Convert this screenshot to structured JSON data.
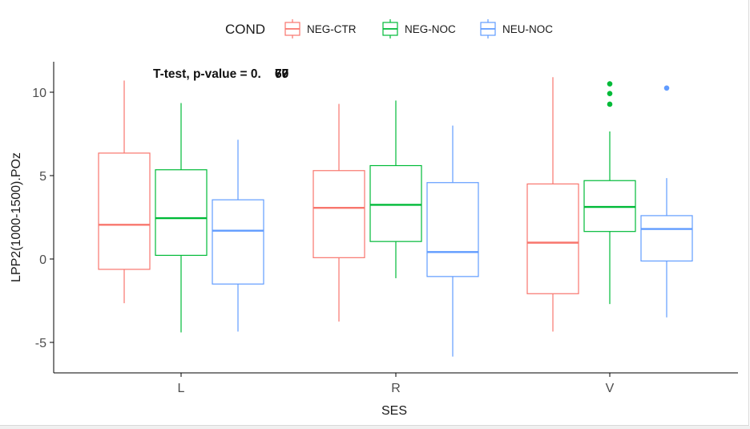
{
  "chart_data": {
    "type": "boxplot",
    "xlabel": "SES",
    "ylabel": "LPP2(1000-1500).POz",
    "categories": [
      "L",
      "R",
      "V"
    ],
    "ylim": [
      -6.8,
      11.8
    ],
    "yticks": [
      -5,
      0,
      5,
      10
    ],
    "ytick_labels": [
      "-5",
      "0",
      "5",
      "10"
    ],
    "legend": {
      "title": "COND",
      "position": "top",
      "entries": [
        "NEG-CTR",
        "NEG-NOC",
        "NEU-NOC"
      ]
    },
    "annotation": {
      "text": "T-test, p-value = 0.",
      "overlay_digits": [
        "69",
        "77",
        "60"
      ]
    },
    "series": [
      {
        "name": "NEG-CTR",
        "color": "#F8766D",
        "boxes": [
          {
            "category": "L",
            "lower_whisker": -2.65,
            "q1": -0.62,
            "median": 2.05,
            "q3": 6.35,
            "upper_whisker": 10.7,
            "outliers": []
          },
          {
            "category": "R",
            "lower_whisker": -3.75,
            "q1": 0.08,
            "median": 3.07,
            "q3": 5.3,
            "upper_whisker": 9.3,
            "outliers": []
          },
          {
            "category": "V",
            "lower_whisker": -4.35,
            "q1": -2.08,
            "median": 0.98,
            "q3": 4.5,
            "upper_whisker": 10.9,
            "outliers": []
          }
        ]
      },
      {
        "name": "NEG-NOC",
        "color": "#00BA38",
        "boxes": [
          {
            "category": "L",
            "lower_whisker": -4.4,
            "q1": 0.22,
            "median": 2.45,
            "q3": 5.35,
            "upper_whisker": 9.35,
            "outliers": []
          },
          {
            "category": "R",
            "lower_whisker": -1.15,
            "q1": 1.05,
            "median": 3.25,
            "q3": 5.6,
            "upper_whisker": 9.5,
            "outliers": []
          },
          {
            "category": "V",
            "lower_whisker": -2.7,
            "q1": 1.65,
            "median": 3.12,
            "q3": 4.7,
            "upper_whisker": 7.65,
            "outliers": [
              10.5,
              9.92,
              9.28
            ]
          }
        ]
      },
      {
        "name": "NEU-NOC",
        "color": "#619CFF",
        "boxes": [
          {
            "category": "L",
            "lower_whisker": -4.35,
            "q1": -1.5,
            "median": 1.7,
            "q3": 3.55,
            "upper_whisker": 7.15,
            "outliers": []
          },
          {
            "category": "R",
            "lower_whisker": -5.85,
            "q1": -1.05,
            "median": 0.42,
            "q3": 4.58,
            "upper_whisker": 8.0,
            "outliers": []
          },
          {
            "category": "V",
            "lower_whisker": -3.5,
            "q1": -0.12,
            "median": 1.8,
            "q3": 2.6,
            "upper_whisker": 4.85,
            "outliers": [
              10.25
            ]
          }
        ]
      }
    ]
  }
}
